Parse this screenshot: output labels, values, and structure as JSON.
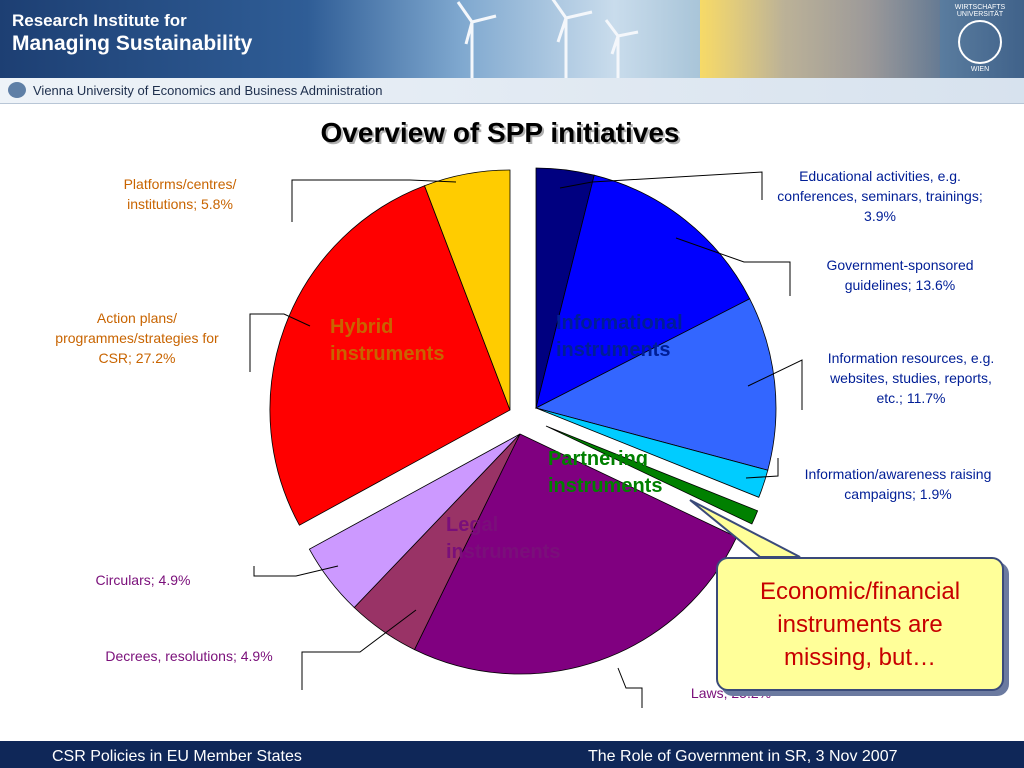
{
  "header": {
    "org_line1": "Research Institute for",
    "org_line2": "Managing Sustainability",
    "university": "Vienna University of Economics and Business Administration",
    "seal_text_top": "WIRTSCHAFTS UNIVERSITÄT",
    "seal_text_bottom": "WIEN"
  },
  "slide_title": "Overview of SPP initiatives",
  "chart_data": {
    "type": "pie",
    "title": "Overview of SPP initiatives",
    "unit": "%",
    "slices": [
      {
        "label": "Educational activities, e.g. conferences, seminars, trainings",
        "value": 3.9,
        "group": "Informational instruments",
        "color": "#000080"
      },
      {
        "label": "Government-sponsored guidelines",
        "value": 13.6,
        "group": "Informational instruments",
        "color": "#0000ff"
      },
      {
        "label": "Information resources, e.g. websites, studies, reports, etc.",
        "value": 11.7,
        "group": "Informational instruments",
        "color": "#3366ff"
      },
      {
        "label": "Information/awareness raising campaigns",
        "value": 1.9,
        "group": "Informational instruments",
        "color": "#00ccff"
      },
      {
        "label": "Partnering",
        "value": 1.0,
        "group": "Partnering instruments",
        "color": "#008000"
      },
      {
        "label": "Laws",
        "value": 25.2,
        "group": "Legal instruments",
        "color": "#800080"
      },
      {
        "label": "Decrees, resolutions",
        "value": 4.9,
        "group": "Legal instruments",
        "color": "#993366"
      },
      {
        "label": "Circulars",
        "value": 4.9,
        "group": "Legal instruments",
        "color": "#cc99ff"
      },
      {
        "label": "Action plans/ programmes/strategies for CSR",
        "value": 27.2,
        "group": "Hybrid instruments",
        "color": "#ff0000"
      },
      {
        "label": "Platforms/centres/ institutions",
        "value": 5.8,
        "group": "Hybrid instruments",
        "color": "#ffcc00"
      }
    ],
    "groups": [
      {
        "name": "Informational instruments",
        "line1": "Informational",
        "line2": "instruments",
        "color": "#001e96"
      },
      {
        "name": "Partnering instruments",
        "line1": "Partnering",
        "line2": "instruments",
        "color": "#008000"
      },
      {
        "name": "Legal instruments",
        "line1": "Legal",
        "line2": "instruments",
        "color": "#7a0f7a"
      },
      {
        "name": "Hybrid instruments",
        "line1": "Hybrid",
        "line2": "instruments",
        "color": "#c86400"
      }
    ],
    "labels": {
      "educational": "Educational activities, e.g. conferences, seminars, trainings; 3.9%",
      "guidelines": "Government-sponsored guidelines; 13.6%",
      "resources": "Information resources, e.g. websites, studies, reports, etc.; 11.7%",
      "campaigns": "Information/awareness raising campaigns; 1.9%",
      "laws": "Laws; 25.2%",
      "decrees": "Decrees, resolutions; 4.9%",
      "circulars": "Circulars; 4.9%",
      "action_plans": "Action plans/ programmes/strategies for CSR; 27.2%",
      "platforms": "Platforms/centres/ institutions; 5.8%"
    },
    "legend": "none",
    "grid": false
  },
  "callout": {
    "text": "Economic/financial instruments are missing, but…"
  },
  "footer": {
    "left": "CSR Policies in EU Member States",
    "right": "The Role of Government in SR, 3 Nov 2007"
  }
}
